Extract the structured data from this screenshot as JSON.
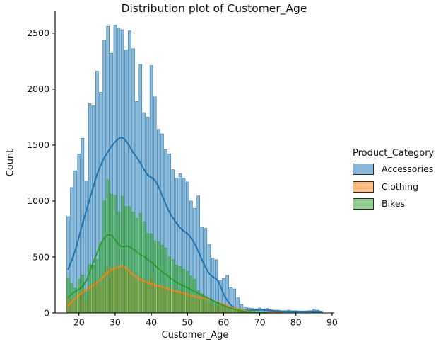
{
  "chart_data": {
    "type": "histogram_kde",
    "title": "Distribution plot of Customer_Age",
    "xlabel": "Customer_Age",
    "ylabel": "Count",
    "legend_title": "Product_Category",
    "bin_width": 1,
    "ages_start": 17,
    "ages_end": 87,
    "xlim": [
      13.4,
      90.6
    ],
    "ylim": [
      0,
      2695
    ],
    "x_ticks": [
      20,
      30,
      40,
      50,
      60,
      70,
      80,
      90
    ],
    "y_ticks": [
      0,
      500,
      1000,
      1500,
      2000,
      2500
    ],
    "grid": false,
    "legend_position": "right-outside",
    "axis_color": "#000000",
    "text_color": "#111111",
    "fill_alpha": 0.5,
    "series": [
      {
        "name": "Accessories",
        "color": "#1f77b4",
        "counts": [
          860,
          1120,
          1270,
          1420,
          1560,
          1180,
          1870,
          1850,
          2160,
          1970,
          2440,
          2560,
          2320,
          2570,
          2545,
          2530,
          2350,
          2520,
          2360,
          1890,
          2220,
          1790,
          1750,
          2210,
          1930,
          1640,
          1600,
          1460,
          1420,
          1280,
          1205,
          1245,
          1205,
          1170,
          1000,
          935,
          1045,
          770,
          755,
          610,
          490,
          475,
          290,
          310,
          335,
          225,
          215,
          135,
          75,
          55,
          45,
          40,
          35,
          45,
          35,
          40,
          30,
          25,
          25,
          20,
          20,
          25,
          20,
          20,
          15,
          15,
          15,
          20,
          35,
          25,
          15
        ],
        "kde": [
          390,
          470,
          560,
          680,
          800,
          910,
          1020,
          1130,
          1240,
          1320,
          1390,
          1440,
          1490,
          1530,
          1560,
          1570,
          1540,
          1490,
          1430,
          1390,
          1340,
          1280,
          1230,
          1210,
          1190,
          1130,
          1050,
          970,
          900,
          845,
          800,
          760,
          730,
          710,
          675,
          620,
          550,
          475,
          405,
          350,
          322,
          305,
          255,
          165,
          110,
          70,
          45,
          32,
          25,
          22,
          22,
          24,
          26,
          28,
          26,
          24,
          21,
          19,
          17,
          15,
          14,
          14,
          13,
          13,
          13,
          13,
          14,
          15,
          16,
          14,
          12
        ]
      },
      {
        "name": "Clothing",
        "color": "#ff7f0e",
        "counts": [
          150,
          120,
          100,
          170,
          200,
          100,
          230,
          240,
          270,
          250,
          360,
          410,
          380,
          400,
          390,
          410,
          390,
          380,
          330,
          300,
          330,
          280,
          260,
          320,
          250,
          240,
          230,
          220,
          200,
          190,
          185,
          190,
          180,
          160,
          140,
          120,
          150,
          110,
          100,
          80,
          70,
          70,
          65,
          50,
          35,
          25,
          20,
          15,
          8,
          5,
          4,
          3,
          3,
          4,
          3,
          3,
          2,
          2,
          2,
          1,
          1,
          2,
          1,
          1,
          1,
          1,
          1,
          1,
          3,
          2,
          1
        ],
        "kde": [
          65,
          95,
          130,
          160,
          185,
          205,
          225,
          248,
          270,
          300,
          335,
          362,
          385,
          402,
          415,
          418,
          405,
          372,
          342,
          318,
          300,
          285,
          270,
          258,
          249,
          241,
          232,
          222,
          211,
          200,
          191,
          183,
          175,
          167,
          158,
          148,
          139,
          132,
          126,
          118,
          108,
          97,
          86,
          75,
          64,
          53,
          43,
          34,
          26,
          19,
          14,
          10,
          7,
          5,
          4,
          3,
          3,
          2,
          2,
          2,
          null,
          null,
          null,
          null,
          null,
          null,
          null,
          null,
          null,
          null,
          null
        ]
      },
      {
        "name": "Bikes",
        "color": "#2ca02c",
        "counts": [
          310,
          260,
          220,
          300,
          340,
          190,
          430,
          420,
          480,
          620,
          1000,
          1190,
          1060,
          1050,
          900,
          1040,
          950,
          950,
          900,
          845,
          890,
          815,
          710,
          705,
          645,
          635,
          605,
          580,
          500,
          475,
          425,
          415,
          390,
          370,
          330,
          300,
          200,
          170,
          150,
          120,
          100,
          95,
          85,
          70,
          50,
          38,
          28,
          18,
          12,
          8,
          6,
          5,
          4,
          6,
          4,
          4,
          3,
          2,
          2,
          2,
          2,
          2,
          2,
          2,
          2,
          2,
          2,
          2,
          5,
          3,
          2
        ],
        "kde": [
          140,
          172,
          192,
          212,
          235,
          285,
          370,
          455,
          535,
          620,
          672,
          700,
          695,
          655,
          610,
          588,
          600,
          592,
          570,
          545,
          522,
          505,
          478,
          455,
          425,
          395,
          370,
          345,
          320,
          295,
          272,
          255,
          240,
          225,
          208,
          192,
          175,
          158,
          142,
          126,
          110,
          95,
          80,
          67,
          54,
          43,
          33,
          25,
          18,
          13,
          9,
          6,
          4,
          3,
          2,
          2,
          null,
          null,
          null,
          null,
          null,
          null,
          null,
          null,
          null,
          null,
          null,
          null,
          null,
          null,
          null
        ]
      }
    ]
  }
}
